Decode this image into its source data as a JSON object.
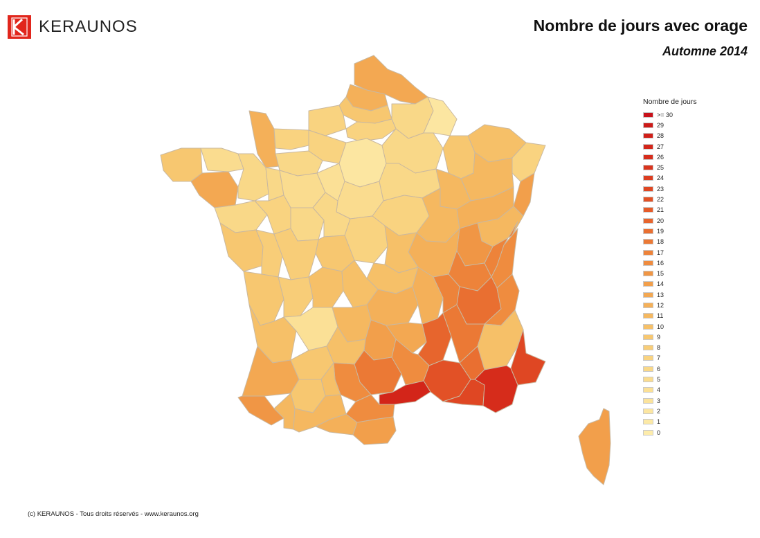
{
  "header": {
    "brand": "KERAUNOS",
    "title": "Nombre de jours avec orage",
    "subtitle": "Automne 2014"
  },
  "legend": {
    "title": "Nombre de jours",
    "items": [
      {
        "label": ">= 30",
        "color": "#c8111a"
      },
      {
        "label": "29",
        "color": "#cc1a18"
      },
      {
        "label": "28",
        "color": "#d01f18"
      },
      {
        "label": "27",
        "color": "#d32519"
      },
      {
        "label": "26",
        "color": "#d62c1b"
      },
      {
        "label": "25",
        "color": "#d9341d"
      },
      {
        "label": "24",
        "color": "#dc3d20"
      },
      {
        "label": "23",
        "color": "#df4723"
      },
      {
        "label": "22",
        "color": "#e25126"
      },
      {
        "label": "21",
        "color": "#e55b29"
      },
      {
        "label": "20",
        "color": "#e7652d"
      },
      {
        "label": "19",
        "color": "#e96f31"
      },
      {
        "label": "18",
        "color": "#eb7935"
      },
      {
        "label": "17",
        "color": "#ed833a"
      },
      {
        "label": "16",
        "color": "#ef8c3f"
      },
      {
        "label": "15",
        "color": "#f09645"
      },
      {
        "label": "14",
        "color": "#f29f4b"
      },
      {
        "label": "13",
        "color": "#f3a852"
      },
      {
        "label": "12",
        "color": "#f4b059"
      },
      {
        "label": "11",
        "color": "#f5b860"
      },
      {
        "label": "10",
        "color": "#f6c068"
      },
      {
        "label": "9",
        "color": "#f7c770"
      },
      {
        "label": "8",
        "color": "#f8cd78"
      },
      {
        "label": "7",
        "color": "#f9d380"
      },
      {
        "label": "6",
        "color": "#f9d888"
      },
      {
        "label": "5",
        "color": "#fadc8f"
      },
      {
        "label": "4",
        "color": "#fbe096"
      },
      {
        "label": "3",
        "color": "#fbe39c"
      },
      {
        "label": "2",
        "color": "#fce6a1"
      },
      {
        "label": "1",
        "color": "#fce9a6"
      },
      {
        "label": "0",
        "color": "#fdecab"
      }
    ]
  },
  "map": {
    "regions": [
      {
        "name": "Nord",
        "value": 13
      },
      {
        "name": "Pas-de-Calais",
        "value": 12
      },
      {
        "name": "Somme",
        "value": 9
      },
      {
        "name": "Aisne",
        "value": 6
      },
      {
        "name": "Ardennes",
        "value": 2
      },
      {
        "name": "Seine-Maritime",
        "value": 7
      },
      {
        "name": "Oise",
        "value": 7
      },
      {
        "name": "Île-de-France",
        "value": 2
      },
      {
        "name": "Manche",
        "value": 12
      },
      {
        "name": "Calvados",
        "value": 7
      },
      {
        "name": "Eure",
        "value": 7
      },
      {
        "name": "Orne",
        "value": 6
      },
      {
        "name": "Finistère",
        "value": 9
      },
      {
        "name": "Côtes-d'Armor",
        "value": 5
      },
      {
        "name": "Morbihan",
        "value": 13
      },
      {
        "name": "Ille-et-Vilaine",
        "value": 6
      },
      {
        "name": "Loire-Atlantique",
        "value": 6
      },
      {
        "name": "Mayenne",
        "value": 6
      },
      {
        "name": "Sarthe",
        "value": 5
      },
      {
        "name": "Eure-et-Loir",
        "value": 4
      },
      {
        "name": "Loiret",
        "value": 5
      },
      {
        "name": "Marne",
        "value": 6
      },
      {
        "name": "Meuse",
        "value": 9
      },
      {
        "name": "Moselle",
        "value": 10
      },
      {
        "name": "Bas-Rhin",
        "value": 7
      },
      {
        "name": "Haut-Rhin",
        "value": 14
      },
      {
        "name": "Aube",
        "value": 6
      },
      {
        "name": "Haute-Marne",
        "value": 11
      },
      {
        "name": "Vosges",
        "value": 11
      },
      {
        "name": "Yonne",
        "value": 7
      },
      {
        "name": "Côte-d'Or",
        "value": 11
      },
      {
        "name": "Haute-Saône",
        "value": 12
      },
      {
        "name": "Doubs",
        "value": 11
      },
      {
        "name": "Jura",
        "value": 15
      },
      {
        "name": "Ain",
        "value": 17
      },
      {
        "name": "Haute-Savoie",
        "value": 17
      },
      {
        "name": "Savoie",
        "value": 16
      },
      {
        "name": "Saône-et-Loire",
        "value": 12
      },
      {
        "name": "Vendée",
        "value": 9
      },
      {
        "name": "Maine-et-Loire",
        "value": 7
      },
      {
        "name": "Indre-et-Loire",
        "value": 6
      },
      {
        "name": "Loir-et-Cher",
        "value": 6
      },
      {
        "name": "Cher",
        "value": 7
      },
      {
        "name": "Nièvre",
        "value": 10
      },
      {
        "name": "Indre",
        "value": 9
      },
      {
        "name": "Deux-Sèvres",
        "value": 8
      },
      {
        "name": "Vienne",
        "value": 8
      },
      {
        "name": "Allier",
        "value": 10
      },
      {
        "name": "Charente-Maritime",
        "value": 9
      },
      {
        "name": "Charente",
        "value": 8
      },
      {
        "name": "Haute-Vienne",
        "value": 10
      },
      {
        "name": "Creuse",
        "value": 10
      },
      {
        "name": "Puy-de-Dôme",
        "value": 12
      },
      {
        "name": "Loire",
        "value": 12
      },
      {
        "name": "Rhône",
        "value": 17
      },
      {
        "name": "Isère",
        "value": 19
      },
      {
        "name": "Hautes-Alpes",
        "value": 16
      },
      {
        "name": "Gironde",
        "value": 10
      },
      {
        "name": "Dordogne",
        "value": 4
      },
      {
        "name": "Corrèze",
        "value": 11
      },
      {
        "name": "Cantal",
        "value": 14
      },
      {
        "name": "Haute-Loire",
        "value": 13
      },
      {
        "name": "Ardèche",
        "value": 20
      },
      {
        "name": "Drôme",
        "value": 18
      },
      {
        "name": "Alpes-de-Haute-Provence",
        "value": 10
      },
      {
        "name": "Alpes-Maritimes",
        "value": 23
      },
      {
        "name": "Landes",
        "value": 13
      },
      {
        "name": "Lot-et-Garonne",
        "value": 9
      },
      {
        "name": "Lot",
        "value": 10
      },
      {
        "name": "Aveyron",
        "value": 18
      },
      {
        "name": "Lozère",
        "value": 16
      },
      {
        "name": "Gard",
        "value": 22
      },
      {
        "name": "Vaucluse",
        "value": 19
      },
      {
        "name": "Bouches-du-Rhône",
        "value": 23
      },
      {
        "name": "Var",
        "value": 26
      },
      {
        "name": "Hérault",
        "value": 27
      },
      {
        "name": "Tarn",
        "value": 16
      },
      {
        "name": "Tarn-et-Garonne",
        "value": 10
      },
      {
        "name": "Gers",
        "value": 9
      },
      {
        "name": "Pyrénées-Atlantiques",
        "value": 15
      },
      {
        "name": "Hautes-Pyrénées",
        "value": 11
      },
      {
        "name": "Haute-Garonne",
        "value": 11
      },
      {
        "name": "Ariège",
        "value": 12
      },
      {
        "name": "Aude",
        "value": 16
      },
      {
        "name": "Pyrénées-Orientales",
        "value": 14
      },
      {
        "name": "Corse",
        "value": 14
      }
    ]
  },
  "footer": {
    "copyright": "(c) KERAUNOS - Tous droits réservés - www.keraunos.org"
  }
}
